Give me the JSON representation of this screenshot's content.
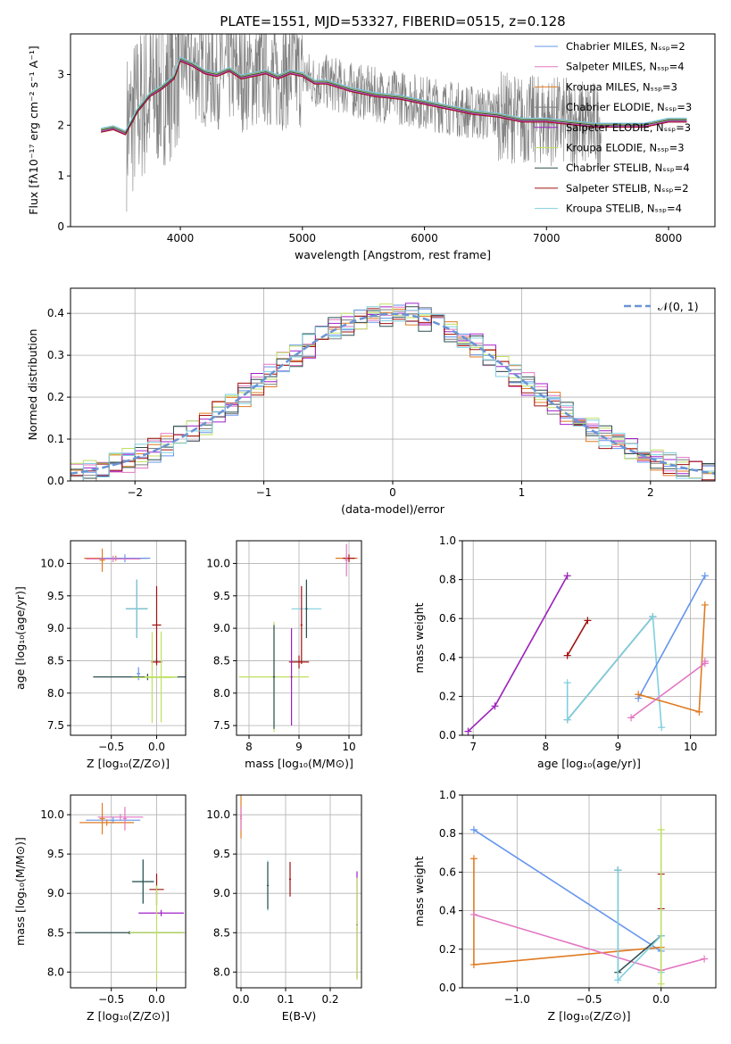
{
  "colors": {
    "cornflower": "#6495ed",
    "orchid": "#e377c2",
    "orange": "#e07b22",
    "grey": "#7f7f7f",
    "purple": "#a020c8",
    "yellowgreen": "#bfe060",
    "darkslate": "#2f4f4f",
    "darkred": "#a01010",
    "lightblue": "#7fcfe0",
    "dashed_normal": "#6a94d4"
  },
  "chart_data": [
    {
      "id": "spectrum",
      "type": "line",
      "title": "PLATE=1551, MJD=53327, FIBERID=0515, z=0.128",
      "xlabel": "wavelength [Angstrom, rest frame]",
      "ylabel": "Flux [fλ10⁻¹⁷ erg cm⁻² s⁻¹ A⁻¹]",
      "xlim": [
        3100,
        8380
      ],
      "ylim": [
        0,
        3.8
      ],
      "xticks": [
        "4000",
        "5000",
        "6000",
        "7000",
        "8000"
      ],
      "yticks": [
        "0",
        "1",
        "2",
        "3"
      ],
      "legend_position": "top-right",
      "legend": [
        {
          "label": "Chabrier MILES, Nₛₛₚ=2",
          "color": "#6495ed"
        },
        {
          "label": "Salpeter MILES, Nₛₛₚ=4",
          "color": "#e377c2"
        },
        {
          "label": "Kroupa MILES, Nₛₛₚ=3",
          "color": "#e07b22"
        },
        {
          "label": "Chabrier ELODIE, Nₛₛₚ=3",
          "color": "#7f7f7f"
        },
        {
          "label": "Salpeter ELODIE, Nₛₛₚ=3",
          "color": "#a020c8"
        },
        {
          "label": "Kroupa ELODIE, Nₛₛₚ=3",
          "color": "#bfe060"
        },
        {
          "label": "Chabrier STELIB, Nₛₛₚ=4",
          "color": "#2f4f4f"
        },
        {
          "label": "Salpeter STELIB, Nₛₛₚ=2",
          "color": "#a01010"
        },
        {
          "label": "Kroupa STELIB, Nₛₛₚ=4",
          "color": "#7fcfe0"
        }
      ],
      "model_curve": {
        "x": [
          3350,
          3450,
          3550,
          3650,
          3750,
          3850,
          3950,
          4000,
          4100,
          4200,
          4300,
          4400,
          4500,
          4600,
          4700,
          4800,
          4900,
          5000,
          5100,
          5200,
          5400,
          5600,
          5800,
          6000,
          6200,
          6400,
          6600,
          6800,
          7000,
          7200,
          7400,
          7600,
          7800,
          8000,
          8150
        ],
        "y": [
          1.9,
          1.95,
          1.85,
          2.3,
          2.6,
          2.75,
          2.95,
          3.3,
          3.2,
          3.05,
          3.0,
          3.1,
          2.95,
          3.0,
          3.05,
          2.95,
          3.05,
          3.0,
          2.85,
          2.85,
          2.7,
          2.6,
          2.55,
          2.45,
          2.35,
          2.25,
          2.2,
          2.1,
          2.1,
          2.05,
          2.0,
          2.0,
          2.0,
          2.1,
          2.1
        ]
      }
    },
    {
      "id": "residuals",
      "type": "line",
      "xlabel": "(data-model)/error",
      "ylabel": "Normed distribution",
      "xlim": [
        -2.5,
        2.5
      ],
      "ylim": [
        0,
        0.46
      ],
      "xticks": [
        "−2",
        "−1",
        "0",
        "1",
        "2"
      ],
      "yticks": [
        "0.0",
        "0.1",
        "0.2",
        "0.3",
        "0.4"
      ],
      "legend_position": "top-right",
      "legend": [
        {
          "label": "𝒩(0, 1)",
          "color": "#6a94d4"
        }
      ]
    },
    {
      "id": "age_vs_z",
      "type": "scatter",
      "xlabel": "Z [log₁₀(Z/Z⊙)]",
      "ylabel": "age  [log₁₀(age/yr)]",
      "xlim": [
        -0.95,
        0.32
      ],
      "ylim": [
        7.35,
        10.35
      ],
      "xticks": [
        "−0.5",
        "0.0"
      ],
      "yticks": [
        "7.5",
        "8.0",
        "8.5",
        "9.0",
        "9.5",
        "10.0"
      ],
      "errorbars": [
        {
          "x": -0.45,
          "y": 10.08,
          "xerr": 0.35,
          "yerr": 0.04,
          "color": "#e07b22"
        },
        {
          "x": -0.35,
          "y": 10.08,
          "xerr": 0.28,
          "yerr": 0.06,
          "color": "#6495ed"
        },
        {
          "x": -0.48,
          "y": 10.07,
          "xerr": 0.3,
          "yerr": 0.05,
          "color": "#e377c2"
        },
        {
          "x": -0.6,
          "y": 10.05,
          "xerr": 0.03,
          "yerr": 0.18,
          "color": "#e07b22"
        },
        {
          "x": -0.22,
          "y": 9.3,
          "xerr": 0.12,
          "yerr": 0.45,
          "color": "#2f4f4f"
        },
        {
          "x": -0.22,
          "y": 9.3,
          "xerr": 0.12,
          "yerr": 0.45,
          "color": "#7fcfe0"
        },
        {
          "x": -0.2,
          "y": 8.3,
          "xerr": 0.02,
          "yerr": 0.1,
          "color": "#6495ed"
        },
        {
          "x": 0.0,
          "y": 9.05,
          "xerr": 0.05,
          "yerr": 0.6,
          "color": "#a01010"
        },
        {
          "x": 0.0,
          "y": 8.48,
          "xerr": 0.06,
          "yerr": 0.05,
          "color": "#a01010"
        },
        {
          "x": -0.1,
          "y": 8.25,
          "xerr": 0.6,
          "yerr": 0.05,
          "color": "#2f4f4f"
        },
        {
          "x": 0.05,
          "y": 8.25,
          "xerr": 0.18,
          "yerr": 0.7,
          "color": "#bfe060"
        },
        {
          "x": -0.05,
          "y": 8.24,
          "xerr": 0.22,
          "yerr": 0.7,
          "color": "#bfe060"
        }
      ]
    },
    {
      "id": "age_vs_mass",
      "type": "scatter",
      "xlabel": "mass [log₁₀(M/M⊙)]",
      "ylabel": "",
      "xlim": [
        7.75,
        10.25
      ],
      "ylim": [
        7.35,
        10.35
      ],
      "xticks": [
        "8",
        "9",
        "10"
      ],
      "yticks": [
        "7.5",
        "8.0",
        "8.5",
        "9.0",
        "9.5",
        "10.0"
      ],
      "errorbars": [
        {
          "x": 9.95,
          "y": 10.08,
          "xerr": 0.22,
          "yerr": 0.04,
          "color": "#e07b22"
        },
        {
          "x": 10.0,
          "y": 10.08,
          "xerr": 0.12,
          "yerr": 0.06,
          "color": "#a01010"
        },
        {
          "x": 9.95,
          "y": 10.05,
          "xerr": 0.03,
          "yerr": 0.25,
          "color": "#e377c2"
        },
        {
          "x": 9.15,
          "y": 9.3,
          "xerr": 0.3,
          "yerr": 0.45,
          "color": "#7fcfe0"
        },
        {
          "x": 9.15,
          "y": 9.3,
          "xerr": 0.02,
          "yerr": 0.45,
          "color": "#2f4f4f"
        },
        {
          "x": 9.0,
          "y": 8.48,
          "xerr": 0.2,
          "yerr": 0.1,
          "color": "#a01010"
        },
        {
          "x": 9.05,
          "y": 9.05,
          "xerr": 0.02,
          "yerr": 0.6,
          "color": "#a01010"
        },
        {
          "x": 8.5,
          "y": 8.25,
          "xerr": 0.7,
          "yerr": 0.85,
          "color": "#bfe060"
        },
        {
          "x": 8.85,
          "y": 8.25,
          "xerr": 0.02,
          "yerr": 0.75,
          "color": "#a020c8"
        },
        {
          "x": 8.5,
          "y": 8.25,
          "xerr": 0.02,
          "yerr": 0.8,
          "color": "#2f4f4f"
        }
      ]
    },
    {
      "id": "weight_vs_age",
      "type": "line",
      "xlabel": "age  [log₁₀(age/yr)]",
      "ylabel": "mass weight",
      "xlim": [
        6.85,
        10.35
      ],
      "ylim": [
        0,
        1.0
      ],
      "xticks": [
        "7",
        "8",
        "9",
        "10"
      ],
      "yticks": [
        "0.0",
        "0.2",
        "0.4",
        "0.6",
        "0.8",
        "1.0"
      ],
      "series": [
        {
          "color": "#bfe060",
          "x": [
            6.93,
            7.3,
            8.3
          ],
          "y": [
            0.02,
            0.15,
            0.82
          ]
        },
        {
          "color": "#a020c8",
          "x": [
            6.93,
            7.3,
            8.3
          ],
          "y": [
            0.02,
            0.15,
            0.82
          ]
        },
        {
          "color": "#a01010",
          "x": [
            8.3,
            8.58
          ],
          "y": [
            0.41,
            0.59
          ]
        },
        {
          "color": "#2f4f4f",
          "x": [
            8.3,
            9.48
          ],
          "y": [
            0.08,
            0.61
          ]
        },
        {
          "color": "#7fcfe0",
          "x": [
            8.3,
            8.3,
            9.48,
            9.6
          ],
          "y": [
            0.27,
            0.08,
            0.61,
            0.04
          ]
        },
        {
          "color": "#6495ed",
          "x": [
            9.28,
            10.2
          ],
          "y": [
            0.19,
            0.82
          ]
        },
        {
          "color": "#e07b22",
          "x": [
            9.28,
            10.12,
            10.2
          ],
          "y": [
            0.21,
            0.12,
            0.67
          ]
        },
        {
          "color": "#e377c2",
          "x": [
            9.18,
            10.2,
            10.2
          ],
          "y": [
            0.09,
            0.37,
            0.38
          ]
        }
      ]
    },
    {
      "id": "mass_vs_z",
      "type": "scatter",
      "xlabel": "Z [log₁₀(Z/Z⊙)]",
      "ylabel": "mass [log₁₀(M/M⊙)]",
      "xlim": [
        -0.95,
        0.32
      ],
      "ylim": [
        7.8,
        10.25
      ],
      "xticks": [
        "−0.5",
        "0.0"
      ],
      "yticks": [
        "8.0",
        "8.5",
        "9.0",
        "9.5",
        "10.0"
      ],
      "errorbars": [
        {
          "x": -0.4,
          "y": 9.97,
          "xerr": 0.25,
          "yerr": 0.04,
          "color": "#e377c2"
        },
        {
          "x": -0.48,
          "y": 9.93,
          "xerr": 0.3,
          "yerr": 0.04,
          "color": "#6495ed"
        },
        {
          "x": -0.55,
          "y": 9.9,
          "xerr": 0.3,
          "yerr": 0.04,
          "color": "#e07b22"
        },
        {
          "x": -0.6,
          "y": 9.95,
          "xerr": 0.03,
          "yerr": 0.2,
          "color": "#e07b22"
        },
        {
          "x": -0.35,
          "y": 9.95,
          "xerr": 0.02,
          "yerr": 0.15,
          "color": "#e377c2"
        },
        {
          "x": -0.15,
          "y": 9.15,
          "xerr": 0.12,
          "yerr": 0.28,
          "color": "#7fcfe0"
        },
        {
          "x": -0.15,
          "y": 9.15,
          "xerr": 0.12,
          "yerr": 0.28,
          "color": "#2f4f4f"
        },
        {
          "x": 0.0,
          "y": 9.05,
          "xerr": 0.08,
          "yerr": 0.2,
          "color": "#a01010"
        },
        {
          "x": 0.05,
          "y": 8.75,
          "xerr": 0.25,
          "yerr": 0.04,
          "color": "#a020c8"
        },
        {
          "x": -0.3,
          "y": 8.5,
          "xerr": 0.6,
          "yerr": 0.02,
          "color": "#2f4f4f"
        },
        {
          "x": 0.0,
          "y": 8.5,
          "xerr": 0.3,
          "yerr": 0.6,
          "color": "#bfe060"
        }
      ]
    },
    {
      "id": "mass_vs_ebv",
      "type": "scatter",
      "xlabel": "E(B-V)",
      "ylabel": "",
      "xlim": [
        -0.01,
        0.27
      ],
      "ylim": [
        7.8,
        10.25
      ],
      "xticks": [
        "0.0",
        "0.1",
        "0.2"
      ],
      "yticks": [
        "8.0",
        "8.5",
        "9.0",
        "9.5",
        "10.0"
      ],
      "errorbars": [
        {
          "x": 0.0,
          "y": 9.98,
          "xerr": 0.002,
          "yerr": 0.28,
          "color": "#e07b22"
        },
        {
          "x": 0.0,
          "y": 9.95,
          "xerr": 0.002,
          "yerr": 0.15,
          "color": "#e377c2"
        },
        {
          "x": 0.06,
          "y": 9.1,
          "xerr": 0.002,
          "yerr": 0.32,
          "color": "#7fcfe0"
        },
        {
          "x": 0.06,
          "y": 9.1,
          "xerr": 0.002,
          "yerr": 0.3,
          "color": "#2f4f4f"
        },
        {
          "x": 0.11,
          "y": 9.18,
          "xerr": 0.002,
          "yerr": 0.22,
          "color": "#a01010"
        },
        {
          "x": 0.26,
          "y": 8.6,
          "xerr": 0.002,
          "yerr": 0.68,
          "color": "#a020c8"
        },
        {
          "x": 0.26,
          "y": 8.55,
          "xerr": 0.002,
          "yerr": 0.65,
          "color": "#bfe060"
        }
      ]
    },
    {
      "id": "weight_vs_z",
      "type": "line",
      "xlabel": "Z [log₁₀(Z/Z⊙)]",
      "ylabel": "mass weight",
      "xlim": [
        -1.38,
        0.38
      ],
      "ylim": [
        0,
        1.0
      ],
      "xticks": [
        "−1.0",
        "−0.5",
        "0.0"
      ],
      "yticks": [
        "0.0",
        "0.2",
        "0.4",
        "0.6",
        "0.8",
        "1.0"
      ],
      "series": [
        {
          "color": "#6495ed",
          "x": [
            -1.3,
            0.0
          ],
          "y": [
            0.82,
            0.19
          ]
        },
        {
          "color": "#e07b22",
          "x": [
            -1.3,
            -1.3,
            0.0
          ],
          "y": [
            0.67,
            0.12,
            0.21
          ]
        },
        {
          "color": "#e377c2",
          "x": [
            -1.3,
            0.0,
            0.3
          ],
          "y": [
            0.38,
            0.09,
            0.15
          ]
        },
        {
          "color": "#2f4f4f",
          "x": [
            -0.3,
            -0.3,
            0.0
          ],
          "y": [
            0.61,
            0.08,
            0.27
          ]
        },
        {
          "color": "#7fcfe0",
          "x": [
            -0.3,
            -0.3,
            0.0,
            0.0
          ],
          "y": [
            0.61,
            0.04,
            0.27,
            0.08
          ]
        },
        {
          "color": "#a01010",
          "x": [
            0.0,
            0.0
          ],
          "y": [
            0.41,
            0.59
          ]
        },
        {
          "color": "#bfe060",
          "x": [
            0.0,
            0.0
          ],
          "y": [
            0.02,
            0.82
          ]
        }
      ]
    }
  ]
}
